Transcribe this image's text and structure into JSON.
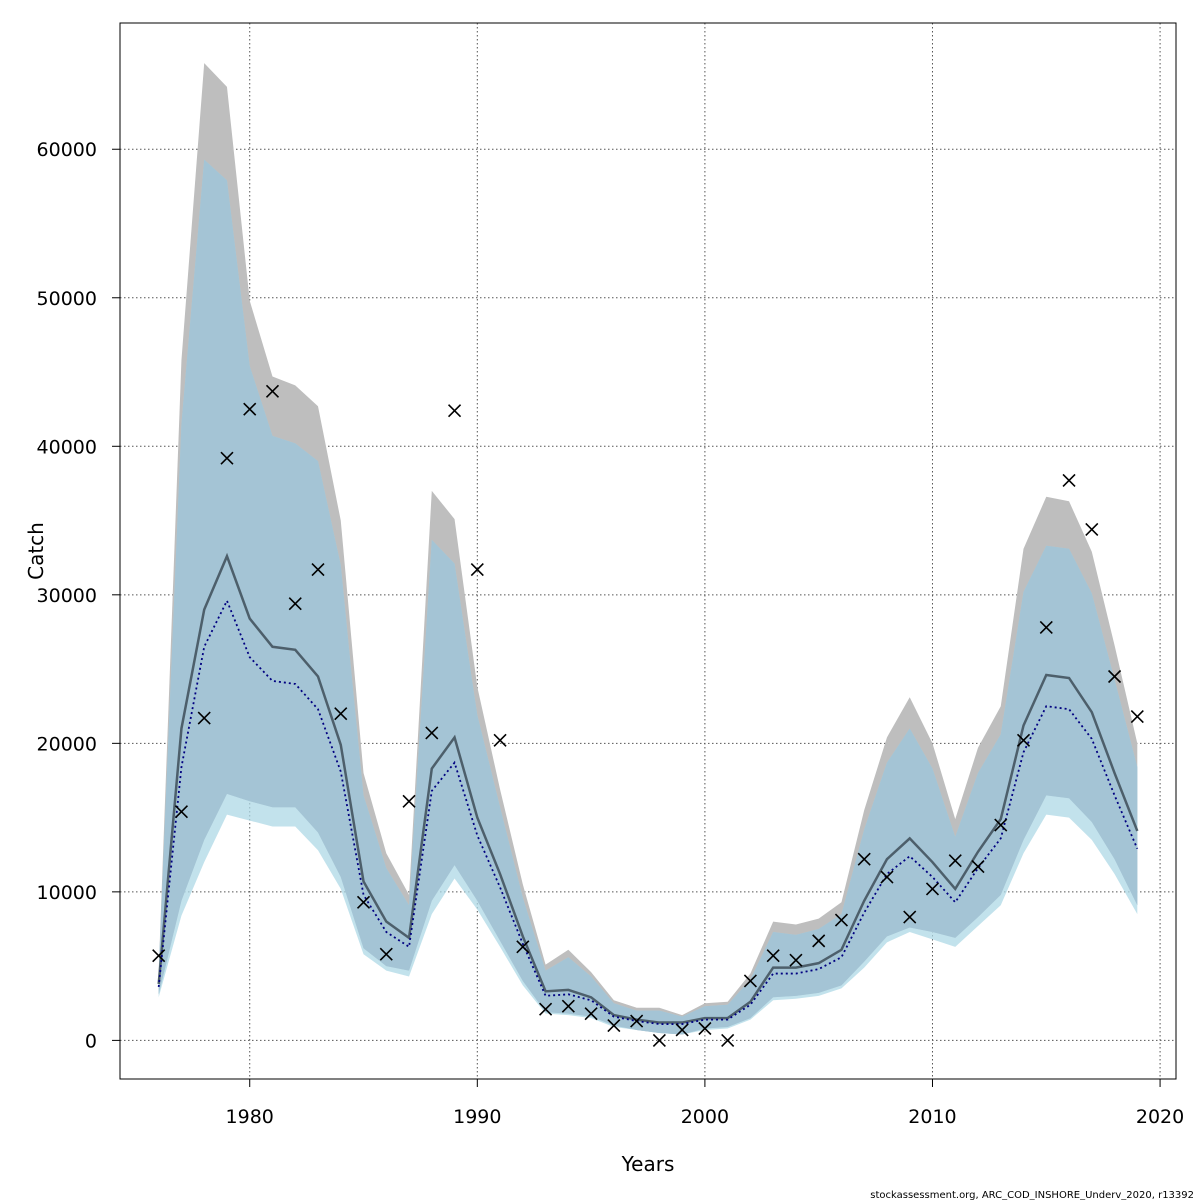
{
  "chart_data": {
    "type": "line",
    "xlabel": "Years",
    "ylabel": "Catch",
    "xlim": [
      1974.3,
      2020.7
    ],
    "ylim": [
      -2600,
      68500
    ],
    "xticks": [
      1980,
      1990,
      2000,
      2010,
      2020
    ],
    "yticks": [
      0,
      10000,
      20000,
      30000,
      40000,
      50000,
      60000
    ],
    "grid": true,
    "footer": "stockassessment.org, ARC_COD_INSHORE_Underv_2020, r13392",
    "colors": {
      "grey_band": "#bebebe",
      "blue_band": "#add8e6",
      "overlap_band": "#a4c4d5",
      "median_line": "#4d5f6b",
      "dotted_line": "#000080",
      "points": "#000000"
    },
    "years": [
      1976,
      1977,
      1978,
      1979,
      1980,
      1981,
      1982,
      1983,
      1984,
      1985,
      1986,
      1987,
      1988,
      1989,
      1990,
      1991,
      1992,
      1993,
      1994,
      1995,
      1996,
      1997,
      1998,
      1999,
      2000,
      2001,
      2002,
      2003,
      2004,
      2005,
      2006,
      2007,
      2008,
      2009,
      2010,
      2011,
      2012,
      2013,
      2014,
      2015,
      2016,
      2017,
      2018,
      2019
    ],
    "series": [
      {
        "band_low": [
          3100,
          9400,
          13500,
          16600,
          16100,
          15700,
          15700,
          14000,
          11000,
          6200,
          5000,
          4700,
          9400,
          11800,
          9400,
          6700,
          4000,
          1900,
          1800,
          1600,
          1000,
          700,
          500,
          400,
          800,
          900,
          1500,
          2900,
          3000,
          3200,
          3700,
          5300,
          7000,
          7600,
          7300,
          6900,
          8300,
          9800,
          13500,
          16500,
          16300,
          14700,
          12200,
          9100
        ],
        "band_high": [
          4700,
          45800,
          65800,
          64200,
          49800,
          44700,
          44100,
          42700,
          35000,
          18000,
          12600,
          9800,
          37000,
          35100,
          23800,
          16900,
          10500,
          5100,
          6100,
          4600,
          2700,
          2200,
          2200,
          1700,
          2500,
          2600,
          4500,
          8000,
          7800,
          8200,
          9300,
          15500,
          20400,
          23100,
          20000,
          14900,
          19700,
          22500,
          33100,
          36600,
          36300,
          32900,
          26600,
          20000
        ],
        "median": [
          3800,
          21000,
          29000,
          32600,
          28400,
          26500,
          26300,
          24500,
          19900,
          10700,
          8000,
          6900,
          18300,
          20400,
          15000,
          11200,
          7000,
          3300,
          3400,
          2900,
          1700,
          1400,
          1200,
          1200,
          1500,
          1500,
          2600,
          4900,
          4900,
          5200,
          6100,
          9400,
          12200,
          13600,
          12000,
          10200,
          12700,
          14900,
          21200,
          24600,
          24400,
          22100,
          18000,
          14100
        ]
      },
      {
        "band_low": [
          2900,
          8400,
          12000,
          15200,
          14800,
          14400,
          14400,
          12800,
          10200,
          5800,
          4700,
          4300,
          8500,
          10900,
          8800,
          6300,
          3700,
          1800,
          1700,
          1500,
          900,
          700,
          500,
          400,
          700,
          800,
          1400,
          2700,
          2800,
          3000,
          3500,
          4900,
          6600,
          7300,
          6800,
          6300,
          7700,
          9100,
          12600,
          15200,
          15000,
          13500,
          11200,
          8500
        ],
        "band_high": [
          4600,
          41500,
          59300,
          57900,
          45400,
          40700,
          40200,
          39000,
          32000,
          16500,
          11600,
          9100,
          33700,
          32100,
          21900,
          15700,
          9600,
          4700,
          5600,
          4300,
          2500,
          2000,
          2000,
          1600,
          2300,
          2400,
          4100,
          7300,
          7100,
          7500,
          8500,
          14200,
          18700,
          21000,
          18300,
          13700,
          18000,
          20600,
          30200,
          33300,
          33100,
          30100,
          24300,
          18400
        ],
        "dotted": [
          3600,
          18400,
          26500,
          29600,
          25800,
          24200,
          24000,
          22300,
          18100,
          9800,
          7300,
          6300,
          16800,
          18700,
          13800,
          10300,
          6500,
          3000,
          3100,
          2700,
          1600,
          1300,
          1100,
          1100,
          1400,
          1400,
          2400,
          4500,
          4500,
          4800,
          5600,
          8600,
          11200,
          12400,
          11000,
          9300,
          11600,
          13600,
          19400,
          22500,
          22300,
          20300,
          16500,
          12900
        ]
      },
      {
        "points": [
          5700,
          15400,
          21700,
          39200,
          42500,
          43700,
          29400,
          31700,
          22000,
          9300,
          5800,
          16100,
          20700,
          42400,
          31700,
          20200,
          6300,
          2100,
          2300,
          1800,
          1000,
          1300,
          0,
          700,
          800,
          0,
          4000,
          5700,
          5400,
          6700,
          8100,
          12200,
          11000,
          8300,
          10200,
          12100,
          11700,
          14500,
          20200,
          27800,
          37700,
          34400,
          24500,
          21800
        ]
      }
    ]
  }
}
